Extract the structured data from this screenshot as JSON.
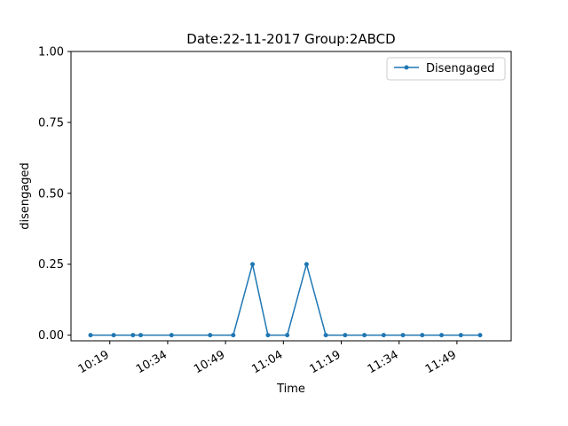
{
  "chart_data": {
    "type": "line",
    "title": "Date:22-11-2017  Group:2ABCD",
    "xlabel": "Time",
    "ylabel": "disengaged",
    "xlim": [
      "10:14",
      "11:58"
    ],
    "ylim": [
      -0.02,
      1.0
    ],
    "xticks": [
      "10:19",
      "10:34",
      "10:49",
      "11:04",
      "11:19",
      "11:34",
      "11:49"
    ],
    "yticks": [
      "0.00",
      "0.25",
      "0.50",
      "0.75",
      "1.00"
    ],
    "grid": false,
    "legend_position": "top-right",
    "series": [
      {
        "name": "Disengaged",
        "color": "#1f77b4",
        "marker": "dot",
        "x": [
          "10:14",
          "10:20",
          "10:25",
          "10:27",
          "10:35",
          "10:45",
          "10:51",
          "10:56",
          "11:00",
          "11:05",
          "11:10",
          "11:15",
          "11:20",
          "11:25",
          "11:30",
          "11:35",
          "11:40",
          "11:45",
          "11:50",
          "11:55"
        ],
        "values": [
          0,
          0,
          0,
          0,
          0,
          0,
          0,
          0.25,
          0,
          0,
          0.25,
          0,
          0,
          0,
          0,
          0,
          0,
          0,
          0,
          0
        ]
      }
    ]
  }
}
